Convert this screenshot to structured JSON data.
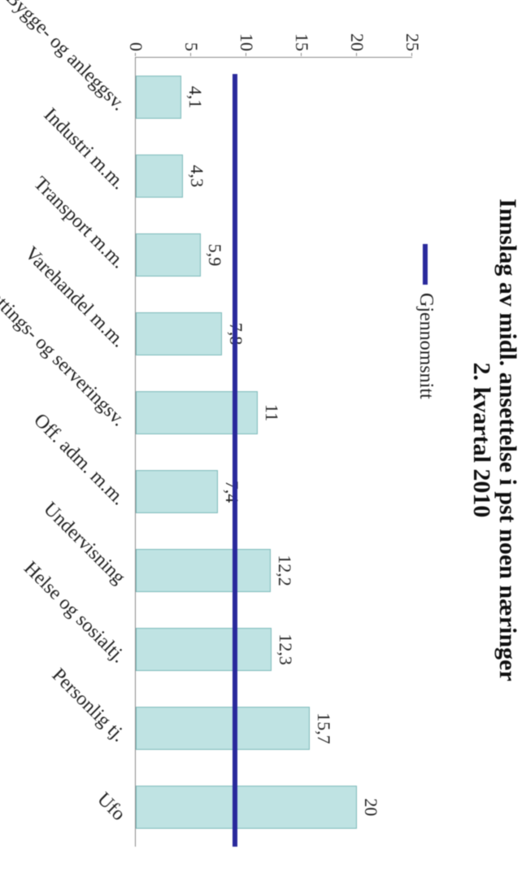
{
  "title_line1": "Innslag av midl. ansettelse i pst noen næringer",
  "title_line2": "2. kvartal 2010",
  "legend_label": "Gjennomsnitt",
  "chart": {
    "type": "bar",
    "background_color": "#ffffff",
    "bar_color": "#bfe3e3",
    "bar_border_color": "#7ab8b8",
    "avg_line_color": "#2a2a9c",
    "axis_color": "#888888",
    "text_color": "#202020",
    "title_fontsize": 30,
    "label_fontsize": 22,
    "xlabel_fontsize": 24,
    "bar_width_ratio": 0.55,
    "ylim": [
      0,
      25
    ],
    "ytick_step": 5,
    "yticks": [
      "0",
      "5",
      "10",
      "15",
      "20",
      "25"
    ],
    "average_value": 9.0,
    "avg_line_width": 6,
    "categories": [
      "Bygge- og anleggsv.",
      "Industri m.m.",
      "Transport m.m.",
      "Varehandel m.m.",
      "Overnattings- og serveringsv.",
      "Off. adm. m.m.",
      "Undervisning",
      "Helse og sosialtj.",
      "Personlig tj.",
      "Ufo"
    ],
    "values": [
      4.1,
      4.3,
      5.9,
      7.8,
      11,
      7.4,
      12.2,
      12.3,
      15.7,
      20
    ],
    "value_labels": [
      "4,1",
      "4,3",
      "5,9",
      "7,8",
      "11",
      "7,4",
      "12,2",
      "12,3",
      "15,7",
      "20"
    ]
  }
}
